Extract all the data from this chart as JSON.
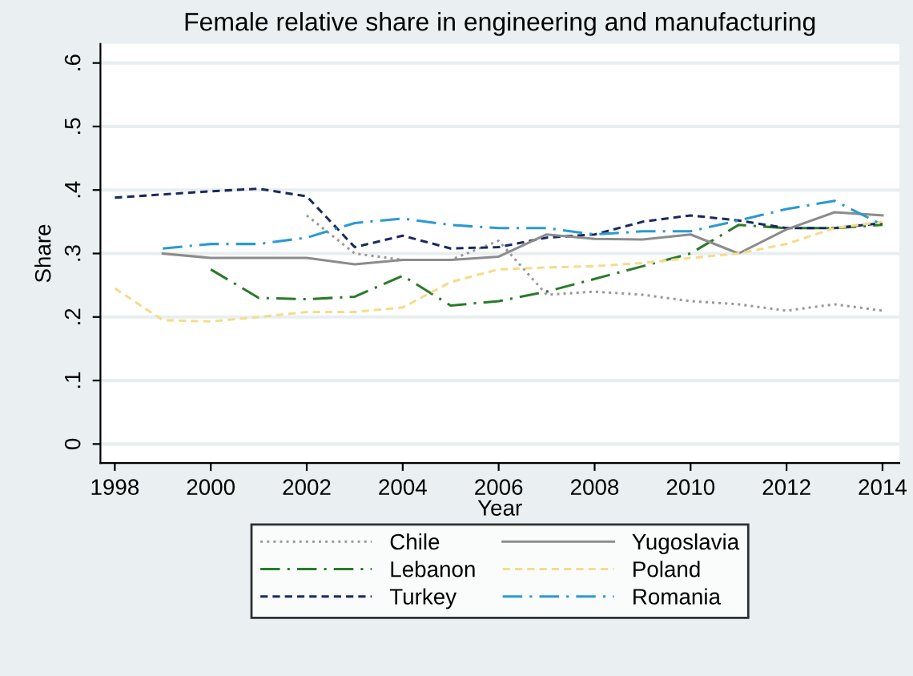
{
  "chart_data": {
    "type": "line",
    "title": "Female relative share in engineering and manufacturing",
    "xlabel": "Year",
    "ylabel": "Share",
    "xlim": [
      1997.7,
      2014.35
    ],
    "xticks": [
      1998,
      2000,
      2002,
      2004,
      2006,
      2008,
      2010,
      2012,
      2014
    ],
    "ylim": [
      -0.03,
      0.63
    ],
    "yticks": [
      {
        "value": 0,
        "label": "0"
      },
      {
        "value": 0.1,
        "label": ".1"
      },
      {
        "value": 0.2,
        "label": ".2"
      },
      {
        "value": 0.3,
        "label": ".3"
      },
      {
        "value": 0.4,
        "label": ".4"
      },
      {
        "value": 0.5,
        "label": ".5"
      },
      {
        "value": 0.6,
        "label": ".6"
      }
    ],
    "grid": "y",
    "legend": "bottom",
    "marker": "none",
    "series": [
      {
        "name": "Chile",
        "color": "#9a9a9a",
        "line_style": "dotted",
        "x": [
          2002,
          2003,
          2004,
          2005,
          2006,
          2007,
          2008,
          2009,
          2010,
          2011,
          2012,
          2013,
          2014
        ],
        "values": [
          0.36,
          0.3,
          0.29,
          0.29,
          0.32,
          0.235,
          0.24,
          0.235,
          0.225,
          0.22,
          0.21,
          0.22,
          0.21
        ]
      },
      {
        "name": "Lebanon",
        "color": "#2a7a2a",
        "line_style": "dashdot",
        "x": [
          2000,
          2001,
          2002,
          2003,
          2004,
          2005,
          2006,
          2007,
          2008,
          2009,
          2010,
          2011,
          2012,
          2013,
          2014
        ],
        "values": [
          0.275,
          0.23,
          0.228,
          0.232,
          0.265,
          0.218,
          0.225,
          0.24,
          0.26,
          0.28,
          0.3,
          0.345,
          0.34,
          0.34,
          0.345
        ]
      },
      {
        "name": "Turkey",
        "color": "#1a2a5a",
        "line_style": "dashed",
        "x": [
          1998,
          1999,
          2000,
          2001,
          2002,
          2003,
          2004,
          2005,
          2006,
          2007,
          2008,
          2009,
          2010,
          2011,
          2012,
          2013,
          2014
        ],
        "values": [
          0.388,
          0.393,
          0.398,
          0.402,
          0.39,
          0.31,
          0.328,
          0.308,
          0.31,
          0.325,
          0.33,
          0.35,
          0.36,
          0.352,
          0.34,
          0.34,
          0.348
        ]
      },
      {
        "name": "Yugoslavia",
        "color": "#8c8c8c",
        "line_style": "solid",
        "x": [
          1999,
          2000,
          2001,
          2002,
          2003,
          2004,
          2005,
          2006,
          2007,
          2008,
          2009,
          2010,
          2011,
          2012,
          2013,
          2014
        ],
        "values": [
          0.3,
          0.293,
          0.293,
          0.293,
          0.283,
          0.29,
          0.29,
          0.295,
          0.33,
          0.323,
          0.322,
          0.33,
          0.3,
          0.338,
          0.365,
          0.36
        ]
      },
      {
        "name": "Poland",
        "color": "#f5dc8c",
        "line_style": "dashed",
        "x": [
          1998,
          1999,
          2000,
          2001,
          2002,
          2003,
          2004,
          2005,
          2006,
          2007,
          2008,
          2009,
          2010,
          2011,
          2012,
          2013,
          2014
        ],
        "values": [
          0.245,
          0.195,
          0.193,
          0.2,
          0.208,
          0.208,
          0.215,
          0.255,
          0.275,
          0.278,
          0.28,
          0.285,
          0.293,
          0.3,
          0.315,
          0.34,
          0.35
        ]
      },
      {
        "name": "Romania",
        "color": "#2a9ad0",
        "line_style": "dashdot",
        "x": [
          1999,
          2000,
          2001,
          2002,
          2003,
          2004,
          2005,
          2006,
          2007,
          2008,
          2009,
          2010,
          2011,
          2012,
          2013,
          2014
        ],
        "values": [
          0.308,
          0.315,
          0.315,
          0.325,
          0.348,
          0.355,
          0.345,
          0.34,
          0.34,
          0.33,
          0.335,
          0.335,
          0.352,
          0.37,
          0.383,
          0.345
        ]
      }
    ]
  }
}
